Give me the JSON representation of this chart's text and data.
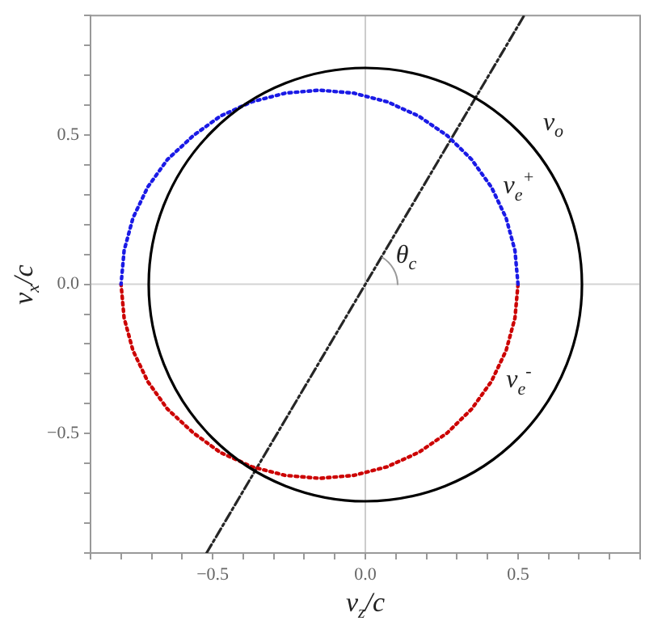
{
  "chart_data": {
    "type": "line",
    "xlabel": "v$_{z}$/c",
    "ylabel": "v$_{x}$/c",
    "xlim": [
      -0.9,
      0.9
    ],
    "ylim": [
      -0.9,
      0.9
    ],
    "xticks": [
      {
        "value": -0.9,
        "label": null
      },
      {
        "value": -0.8,
        "label": null
      },
      {
        "value": -0.7,
        "label": null
      },
      {
        "value": -0.6,
        "label": null
      },
      {
        "value": -0.5,
        "label": "−0.5"
      },
      {
        "value": -0.4,
        "label": null
      },
      {
        "value": -0.3,
        "label": null
      },
      {
        "value": -0.2,
        "label": null
      },
      {
        "value": -0.1,
        "label": null
      },
      {
        "value": 0,
        "label": "0.0"
      },
      {
        "value": 0.1,
        "label": null
      },
      {
        "value": 0.2,
        "label": null
      },
      {
        "value": 0.3,
        "label": null
      },
      {
        "value": 0.4,
        "label": null
      },
      {
        "value": 0.5,
        "label": "0.5"
      },
      {
        "value": 0.6,
        "label": null
      },
      {
        "value": 0.7,
        "label": null
      },
      {
        "value": 0.8,
        "label": null
      },
      {
        "value": 0.9,
        "label": null
      }
    ],
    "yticks": [
      {
        "value": -0.9,
        "label": null
      },
      {
        "value": -0.8,
        "label": null
      },
      {
        "value": -0.7,
        "label": null
      },
      {
        "value": -0.6,
        "label": null
      },
      {
        "value": -0.5,
        "label": "−0.5"
      },
      {
        "value": -0.4,
        "label": null
      },
      {
        "value": -0.3,
        "label": null
      },
      {
        "value": -0.2,
        "label": null
      },
      {
        "value": -0.1,
        "label": null
      },
      {
        "value": 0,
        "label": "0.0"
      },
      {
        "value": 0.1,
        "label": null
      },
      {
        "value": 0.2,
        "label": null
      },
      {
        "value": 0.3,
        "label": null
      },
      {
        "value": 0.4,
        "label": null
      },
      {
        "value": 0.5,
        "label": "0.5"
      },
      {
        "value": 0.6,
        "label": null
      },
      {
        "value": 0.7,
        "label": null
      },
      {
        "value": 0.8,
        "label": null
      },
      {
        "value": 0.9,
        "label": null
      }
    ],
    "grid": false,
    "legend": false,
    "marker": "none",
    "ref_lines": [
      {
        "axis": "x",
        "value": 0,
        "color": "#cccccc"
      },
      {
        "axis": "y",
        "value": 0,
        "color": "#d4d4d4"
      }
    ],
    "series": [
      {
        "name": "v$_{e}$$^{+}$",
        "color": "#1a1ae6",
        "line_style": "dotted",
        "x": [
          0.5,
          0.49,
          0.461,
          0.413,
          0.348,
          0.268,
          0.175,
          0.072,
          -0.037,
          -0.15,
          -0.263,
          -0.372,
          -0.475,
          -0.563,
          -0.648,
          -0.713,
          -0.761,
          -0.79,
          -0.8
        ],
        "values": [
          0,
          0.113,
          0.222,
          0.325,
          0.418,
          0.498,
          0.563,
          0.611,
          0.64,
          0.65,
          0.64,
          0.611,
          0.563,
          0.498,
          0.418,
          0.325,
          0.222,
          0.113,
          0
        ]
      },
      {
        "name": "v$_{e}$$^{-}$",
        "color": "#cc0000",
        "line_style": "dotted",
        "x": [
          0.5,
          0.49,
          0.461,
          0.413,
          0.348,
          0.268,
          0.175,
          0.072,
          -0.037,
          -0.15,
          -0.263,
          -0.372,
          -0.475,
          -0.563,
          -0.648,
          -0.713,
          -0.761,
          -0.79,
          -0.8
        ],
        "values": [
          0,
          -0.113,
          -0.222,
          -0.325,
          -0.418,
          -0.498,
          -0.563,
          -0.611,
          -0.64,
          -0.65,
          -0.64,
          -0.611,
          -0.563,
          -0.498,
          -0.418,
          -0.325,
          -0.222,
          -0.113,
          0
        ]
      },
      {
        "color": "#262626",
        "line_style": "dashed",
        "x": [
          -0.52,
          0.52
        ],
        "values": [
          -0.9,
          0.9
        ]
      }
    ],
    "annotations": [
      "v$_{o}$",
      "θ$_{c}$"
    ]
  }
}
